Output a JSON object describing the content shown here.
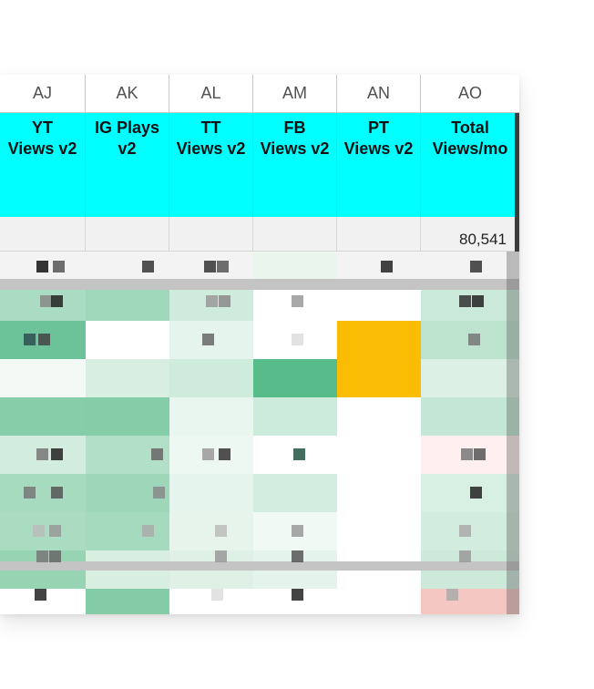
{
  "sheet": {
    "columns": [
      "AJ",
      "AK",
      "AL",
      "AM",
      "AN",
      "AO"
    ],
    "headers": [
      "YT\nViews v2",
      "IG Plays\nv2",
      "TT\nViews v2",
      "FB\nViews v2",
      "PT\nViews v2",
      "Total\nViews/mo"
    ],
    "totals": [
      "",
      "",
      "",
      "",
      "",
      "80,541"
    ]
  },
  "colors": {
    "header_fill": "#00ffff",
    "highlight_fill": "#fbbc04",
    "negative_fill": "#f4c7c3"
  },
  "grid_rows": [
    [
      "#f3f3f3",
      "#f3f3f3",
      "#f3f3f3",
      "#eaf5ee",
      "#f3f3f3",
      "#f3f3f3"
    ],
    [
      "#a9dcc2",
      "#9ed7b9",
      "#cfebdc",
      "#ffffff",
      "#ffffff",
      "#cbe9d9"
    ],
    [
      "#6cc399",
      "#ffffff",
      "#e5f4ec",
      "#ffffff",
      "#fbbc04",
      "#bde3cf"
    ],
    [
      "#f3faf6",
      "#d7eee1",
      "#cfebdc",
      "#57bb8a",
      "#fbbc04",
      "#dcf0e5"
    ],
    [
      "#86cea9",
      "#85cda8",
      "#e9f6ef",
      "#cdebdb",
      "#ffffff",
      "#c4e6d4"
    ],
    [
      "#d2ecde",
      "#b2dfc7",
      "#eef8f2",
      "#ffffff",
      "#ffffff",
      "#fdf0ef"
    ],
    [
      "#a7dbc0",
      "#9dd6b8",
      "#e5f4ec",
      "#d3ede0",
      "#ffffff",
      "#d8efe3"
    ],
    [
      "#aadcc2",
      "#a6dabf",
      "#e6f4ec",
      "#f1f9f4",
      "#ffffff",
      "#d2ecde"
    ],
    [
      "#97d4b4",
      "#d7eee1",
      "#dff1e7",
      "#e4f3eb",
      "#ffffff",
      "#cce9da"
    ],
    [
      "#ffffff",
      "#83cca7",
      "#ffffff",
      "#ffffff",
      "#ffffff",
      "#f4c7c3"
    ]
  ]
}
